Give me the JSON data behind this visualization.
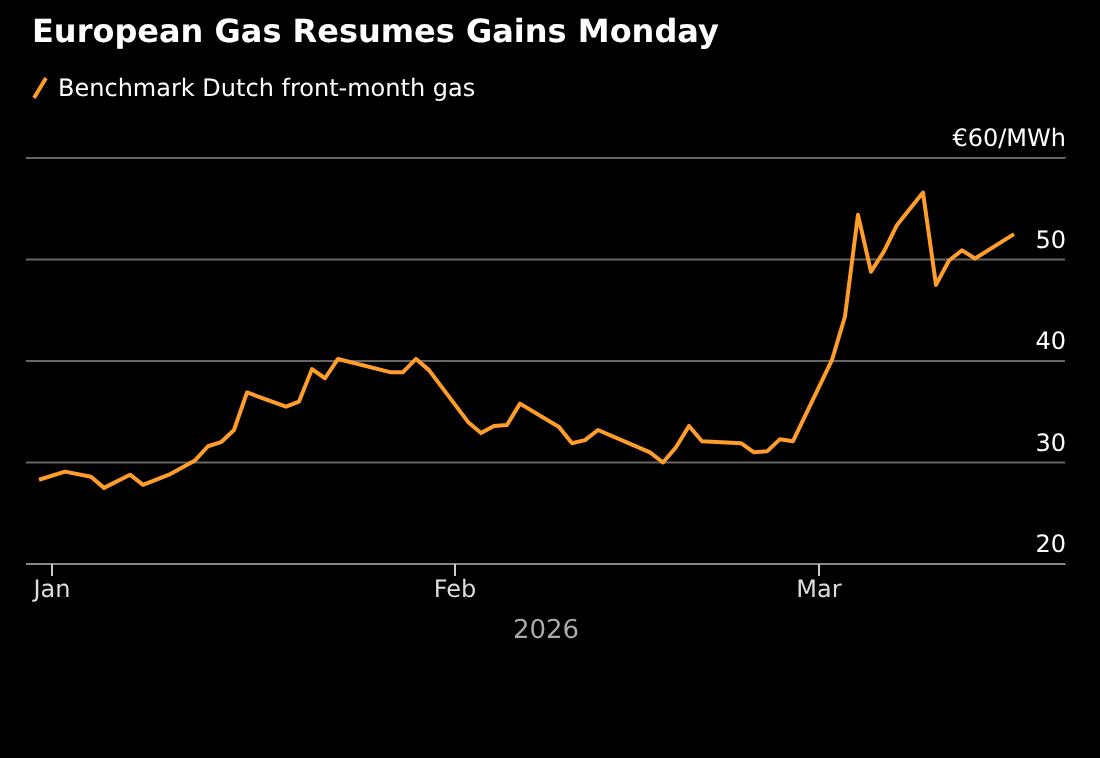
{
  "chart_data": {
    "type": "line",
    "title": "European Gas Resumes Gains Monday",
    "xlabel": "2026",
    "x": [
      "2025-12-31",
      "2026-01-02",
      "2026-01-04",
      "2026-01-05",
      "2026-01-07",
      "2026-01-08",
      "2026-01-10",
      "2026-01-12",
      "2026-01-13",
      "2026-01-14",
      "2026-01-15",
      "2026-01-16",
      "2026-01-19",
      "2026-01-20",
      "2026-01-21",
      "2026-01-22",
      "2026-01-23",
      "2026-01-27",
      "2026-01-28",
      "2026-01-29",
      "2026-01-30",
      "2026-02-02",
      "2026-02-03",
      "2026-02-04",
      "2026-02-05",
      "2026-02-06",
      "2026-02-09",
      "2026-02-10",
      "2026-02-11",
      "2026-02-12",
      "2026-02-16",
      "2026-02-17",
      "2026-02-18",
      "2026-02-19",
      "2026-02-20",
      "2026-02-23",
      "2026-02-24",
      "2026-02-25",
      "2026-02-26",
      "2026-02-27",
      "2026-03-02",
      "2026-03-03",
      "2026-03-04",
      "2026-03-05",
      "2026-03-06",
      "2026-03-07",
      "2026-03-09",
      "2026-03-10",
      "2026-03-11",
      "2026-03-12",
      "2026-03-13",
      "2026-03-16"
    ],
    "series": [
      {
        "name": "Benchmark Dutch front-month gas",
        "color": "#ff9d2b",
        "values": [
          28.3,
          29.1,
          28.6,
          27.5,
          28.8,
          27.8,
          28.8,
          30.2,
          31.6,
          32.0,
          33.2,
          36.9,
          35.5,
          36.0,
          39.2,
          38.3,
          40.2,
          38.9,
          38.9,
          40.2,
          39.1,
          34.0,
          32.9,
          33.6,
          33.7,
          35.8,
          33.5,
          31.9,
          32.2,
          33.2,
          31.0,
          30.0,
          31.5,
          33.6,
          32.1,
          31.9,
          31.0,
          31.1,
          32.3,
          32.1,
          40.1,
          44.4,
          54.4,
          48.8,
          50.8,
          53.4,
          56.6,
          47.5,
          49.9,
          50.9,
          50.1,
          52.5
        ]
      }
    ],
    "xlim": [
      "2025-12-30",
      "2026-03-20"
    ],
    "xticks": [
      {
        "value": "2026-01-01",
        "label": "Jan"
      },
      {
        "value": "2026-02-01",
        "label": "Feb"
      },
      {
        "value": "2026-03-01",
        "label": "Mar"
      }
    ],
    "ylim": [
      20,
      60
    ],
    "yticks": [
      20,
      30,
      40,
      50,
      {
        "value": 60,
        "label": "€60/MWh"
      }
    ],
    "grid": "y",
    "legend": "top left",
    "marker": "none",
    "line_style": "solid"
  }
}
